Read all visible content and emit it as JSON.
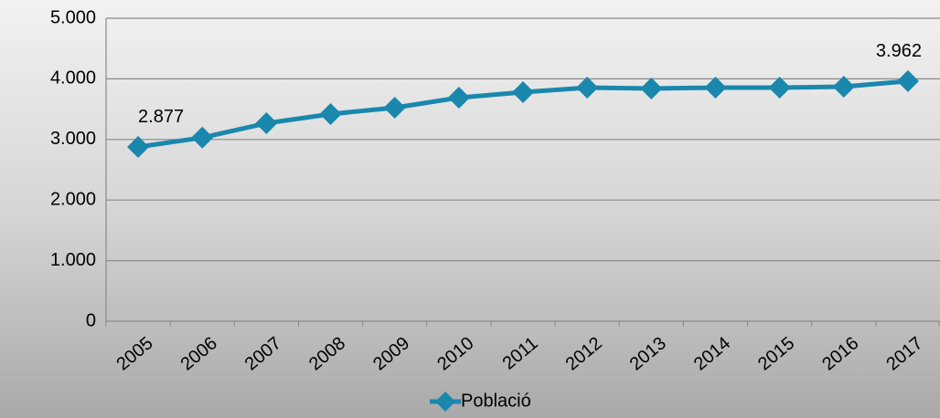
{
  "chart_data": {
    "type": "line",
    "categories": [
      "2005",
      "2006",
      "2007",
      "2008",
      "2009",
      "2010",
      "2011",
      "2012",
      "2013",
      "2014",
      "2015",
      "2016",
      "2017"
    ],
    "series": [
      {
        "name": "Població",
        "color": "#1a87ad",
        "values": [
          2877,
          3030,
          3268,
          3419,
          3524,
          3690,
          3780,
          3855,
          3840,
          3855,
          3855,
          3870,
          3962
        ],
        "value_labels": [
          "2.877",
          null,
          null,
          null,
          null,
          null,
          null,
          null,
          null,
          null,
          null,
          null,
          "3.962"
        ]
      }
    ],
    "ylim": [
      0,
      5000
    ],
    "yticks": [
      {
        "value": 0,
        "label": "0"
      },
      {
        "value": 1000,
        "label": "1.000"
      },
      {
        "value": 2000,
        "label": "2.000"
      },
      {
        "value": 3000,
        "label": "3.000"
      },
      {
        "value": 4000,
        "label": "4.000"
      },
      {
        "value": 5000,
        "label": "5.000"
      }
    ],
    "grid": true,
    "legend": "bottom"
  }
}
